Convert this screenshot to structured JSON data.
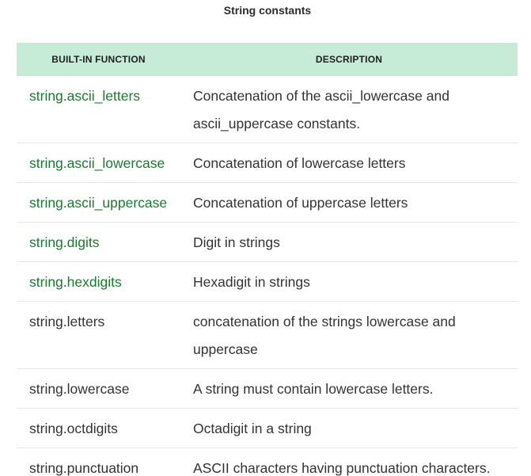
{
  "caption": "String constants",
  "headers": {
    "function": "BUILT-IN FUNCTION",
    "description": "DESCRIPTION"
  },
  "rows": [
    {
      "function": "string.ascii_letters",
      "description": "Concatenation of the ascii_lowercase and ascii_uppercase constants.",
      "linked": true
    },
    {
      "function": "string.ascii_lowercase",
      "description": "Concatenation of lowercase letters",
      "linked": true
    },
    {
      "function": "string.ascii_uppercase",
      "description": "Concatenation of uppercase letters",
      "linked": true
    },
    {
      "function": "string.digits",
      "description": "Digit in strings",
      "linked": true
    },
    {
      "function": "string.hexdigits",
      "description": "Hexadigit in strings",
      "linked": true
    },
    {
      "function": "string.letters",
      "description": "concatenation of the strings lowercase and uppercase",
      "linked": false
    },
    {
      "function": "string.lowercase",
      "description": "A string must contain lowercase letters.",
      "linked": false
    },
    {
      "function": "string.octdigits",
      "description": "Octadigit in a string",
      "linked": false
    },
    {
      "function": "string.punctuation",
      "description": "ASCII characters having punctuation characters.",
      "linked": false
    }
  ],
  "colors": {
    "header_bg": "#c6ecd7",
    "link": "#1a7a2e",
    "text": "#333333",
    "divider": "#e6e6e6"
  }
}
